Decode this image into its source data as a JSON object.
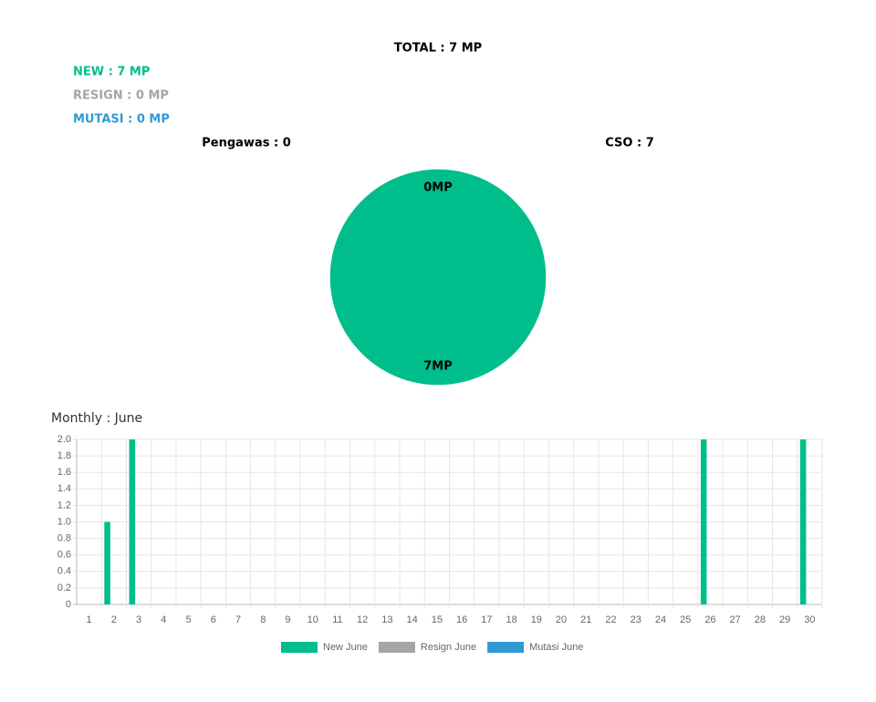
{
  "summary": [
    {
      "text": "NEW : 7 MP",
      "color": "#00be8c"
    },
    {
      "text": "RESIGN : 0 MP",
      "color": "#a5a5a5"
    },
    {
      "text": "MUTASI : 0 MP",
      "color": "#2e9bd6"
    }
  ],
  "chart_data": [
    {
      "type": "pie",
      "title": "TOTAL : 7 MP",
      "categories": [
        "Pengawas : 0",
        "CSO : 7"
      ],
      "values": [
        0,
        7
      ],
      "value_labels": [
        "0MP",
        "7MP"
      ],
      "colors": [
        "#00be8c",
        "#00be8c"
      ]
    },
    {
      "type": "bar",
      "title": "Monthly : June",
      "categories": [
        1,
        2,
        3,
        4,
        5,
        6,
        7,
        8,
        9,
        10,
        11,
        12,
        13,
        14,
        15,
        16,
        17,
        18,
        19,
        20,
        21,
        22,
        23,
        24,
        25,
        26,
        27,
        28,
        29,
        30
      ],
      "series": [
        {
          "name": "New June",
          "color": "#00be8c",
          "values": [
            0,
            1,
            2,
            0,
            0,
            0,
            0,
            0,
            0,
            0,
            0,
            0,
            0,
            0,
            0,
            0,
            0,
            0,
            0,
            0,
            0,
            0,
            0,
            0,
            0,
            2,
            0,
            0,
            0,
            2
          ]
        },
        {
          "name": "Resign June",
          "color": "#a5a5a5",
          "values": [
            0,
            0,
            0,
            0,
            0,
            0,
            0,
            0,
            0,
            0,
            0,
            0,
            0,
            0,
            0,
            0,
            0,
            0,
            0,
            0,
            0,
            0,
            0,
            0,
            0,
            0,
            0,
            0,
            0,
            0
          ]
        },
        {
          "name": "Mutasi June",
          "color": "#2e9bd6",
          "values": [
            0,
            0,
            0,
            0,
            0,
            0,
            0,
            0,
            0,
            0,
            0,
            0,
            0,
            0,
            0,
            0,
            0,
            0,
            0,
            0,
            0,
            0,
            0,
            0,
            0,
            0,
            0,
            0,
            0,
            0
          ]
        }
      ],
      "ylim": [
        0,
        2
      ],
      "yticks": [
        0,
        0.2,
        0.4,
        0.6,
        0.8,
        {
          "value": 1,
          "label": "1.0"
        },
        1.2,
        1.4,
        1.6,
        1.8,
        {
          "value": 2,
          "label": "2.0"
        }
      ],
      "grid": true
    }
  ]
}
